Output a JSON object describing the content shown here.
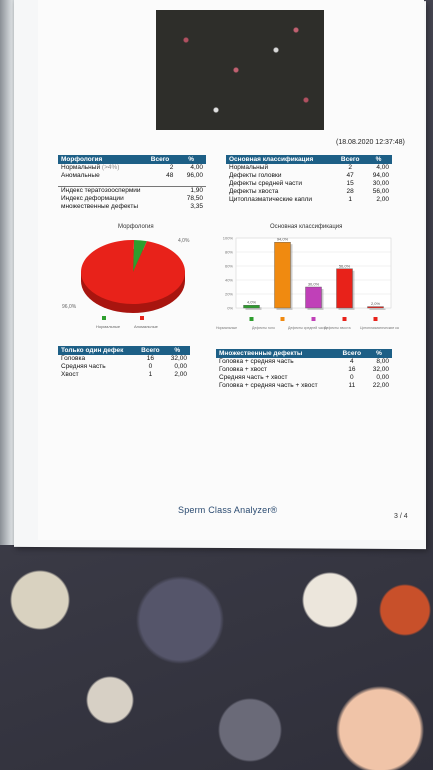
{
  "header": {
    "datetime": "(18.08.2020 12:37:48)"
  },
  "morphology_table": {
    "headers": [
      "Морфология",
      "Всего",
      "%"
    ],
    "rows": [
      {
        "label": "Нормальный",
        "note": "(>4%)",
        "total": "2",
        "pct": "4,00"
      },
      {
        "label": "Аномальные",
        "note": "",
        "total": "48",
        "pct": "96,00"
      }
    ]
  },
  "indices": [
    {
      "label": "Индекс тератозооспермии",
      "value": "1,90"
    },
    {
      "label": "Индекс деформации",
      "value": "78,50"
    },
    {
      "label": "множественные дефекты",
      "value": "3,35"
    }
  ],
  "main_class_table": {
    "headers": [
      "Основная классификация",
      "Всего",
      "%"
    ],
    "rows": [
      {
        "label": "Нормальный",
        "total": "2",
        "pct": "4,00"
      },
      {
        "label": "Дефекты головки",
        "total": "47",
        "pct": "94,00"
      },
      {
        "label": "Дефекты средней части",
        "total": "15",
        "pct": "30,00"
      },
      {
        "label": "Дефекты хвоста",
        "total": "28",
        "pct": "56,00"
      },
      {
        "label": "Цитоплазматические капли",
        "total": "1",
        "pct": "2,00"
      }
    ]
  },
  "single_defect_table": {
    "headers": [
      "Только один дефек",
      "Всего",
      "%"
    ],
    "rows": [
      {
        "label": "Головка",
        "total": "16",
        "pct": "32,00"
      },
      {
        "label": "Средняя часть",
        "total": "0",
        "pct": "0,00"
      },
      {
        "label": "Хвост",
        "total": "1",
        "pct": "2,00"
      }
    ]
  },
  "multiple_defects_table": {
    "headers": [
      "Множественные дефекты",
      "Всего",
      "%"
    ],
    "rows": [
      {
        "label": "Головка + средняя часть",
        "total": "4",
        "pct": "8,00"
      },
      {
        "label": "Головка + хвост",
        "total": "16",
        "pct": "32,00"
      },
      {
        "label": "Средняя часть + хвост",
        "total": "0",
        "pct": "0,00"
      },
      {
        "label": "Головка + средняя часть + хвост",
        "total": "11",
        "pct": "22,00"
      }
    ]
  },
  "footer": {
    "brand": "Sperm Class Analyzer®",
    "page": "3 / 4"
  },
  "colors": {
    "header_blue": "#1d5f86",
    "green": "#2e9e2e",
    "red": "#e8221a",
    "orange": "#f08a10",
    "magenta": "#c040b8"
  },
  "chart_data": [
    {
      "type": "pie",
      "title": "Морфология",
      "categories": [
        "Нормальные",
        "Аномальные"
      ],
      "values": [
        4.0,
        96.0
      ],
      "labels": [
        "4,0%",
        "96,0%"
      ],
      "colors": [
        "#2e9e2e",
        "#e8221a"
      ],
      "legend": "bottom"
    },
    {
      "type": "bar",
      "title": "Основная классификация",
      "categories": [
        "Нормальные",
        "Дефекты головки",
        "Дефекты средней части",
        "Дефекты хвоста",
        "Цитоплазматические капли"
      ],
      "categories_printed": [
        "Нормальные",
        "Дефекты голо",
        "Дефекты средней части",
        "Дефекты хвоста",
        "Цитоплазматические капли"
      ],
      "values": [
        4.0,
        94.0,
        30.0,
        56.0,
        2.0
      ],
      "labels": [
        "4,0%",
        "94,0%",
        "30,0%",
        "56,0%",
        "2,0%"
      ],
      "colors": [
        "#2e9e2e",
        "#f08a10",
        "#c040b8",
        "#e8221a",
        "#e8221a"
      ],
      "ylim": [
        0,
        100
      ],
      "yticks": [
        "0%",
        "20%",
        "40%",
        "60%",
        "80%",
        "100%"
      ],
      "grid": true,
      "legend": "bottom"
    }
  ]
}
